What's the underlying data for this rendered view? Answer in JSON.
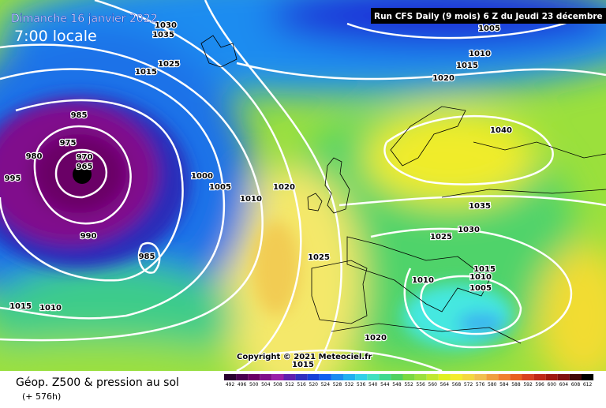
{
  "header": {
    "date": "Dimanche 16 janvier 2022",
    "time": "7:00 locale",
    "run": "Run CFS Daily (9 mois) 6 Z du Jeudi 23 décembre 2021"
  },
  "isobar_labels": [
    1030,
    1035,
    1025,
    1015,
    985,
    975,
    980,
    970,
    965,
    995,
    1000,
    1005,
    1010,
    1020,
    990,
    985,
    1025,
    1015,
    1010,
    1005,
    1010,
    1015,
    1020,
    1040,
    1035,
    1030,
    1025,
    1015,
    1010,
    1010,
    1005,
    1020,
    1015
  ],
  "copyright": "Copyright © 2021 Meteociel.fr",
  "footer": {
    "title": "Géop. Z500 & pression au sol",
    "lead": "(+ 576h)"
  },
  "scale": {
    "ticks": [
      492,
      496,
      500,
      504,
      508,
      512,
      516,
      520,
      524,
      528,
      532,
      536,
      540,
      544,
      548,
      552,
      556,
      560,
      564,
      568,
      572,
      576,
      580,
      584,
      588,
      592,
      596,
      600,
      604,
      608,
      612
    ]
  }
}
